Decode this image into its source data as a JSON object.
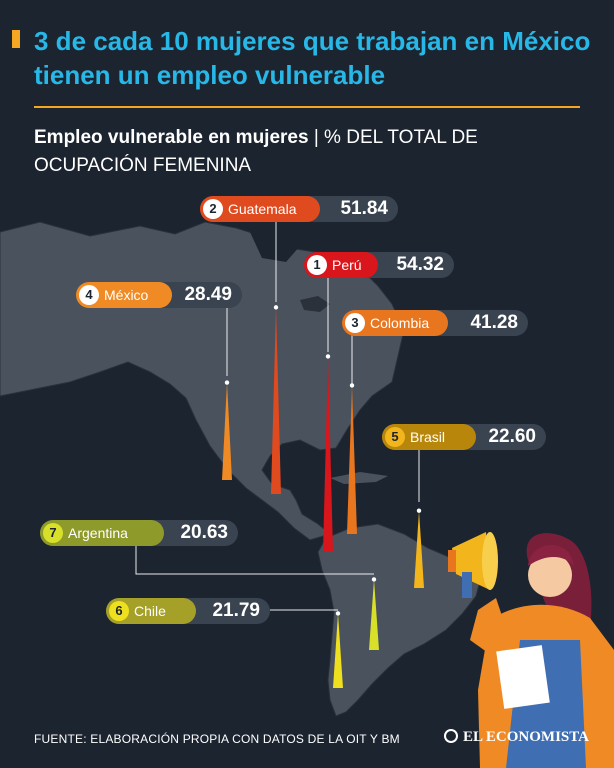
{
  "header": {
    "title": "3 de cada 10 mujeres que trabajan en México tienen un empleo vulnerable",
    "subtitle_bold": "Empleo vulnerable en mujeres",
    "subtitle_sep": " | ",
    "subtitle_rest": "% DEL TOTAL DE OCUPACIÓN FEMENINA"
  },
  "chart_data": {
    "type": "bar",
    "title": "Empleo vulnerable en mujeres",
    "ylabel": "% del total de ocupación femenina",
    "categories": [
      "Perú",
      "Guatemala",
      "Colombia",
      "México",
      "Brasil",
      "Chile",
      "Argentina"
    ],
    "ranks": [
      "1",
      "2",
      "3",
      "4",
      "5",
      "6",
      "7"
    ],
    "values": [
      54.32,
      51.84,
      41.28,
      28.49,
      22.6,
      21.79,
      20.63
    ],
    "value_labels": [
      "54.32",
      "51.84",
      "41.28",
      "28.49",
      "22.60",
      "21.79",
      "20.63"
    ],
    "colors": [
      "#d8161b",
      "#e04a1f",
      "#e8761f",
      "#f08a24",
      "#f2b51c",
      "#efe01f",
      "#d8e02a"
    ],
    "ylim": [
      0,
      60
    ]
  },
  "footer": {
    "source": "FUENTE: ELABORACIÓN PROPIA CON DATOS DE LA OIT Y BM",
    "brand": "EL ECONOMISTA"
  }
}
